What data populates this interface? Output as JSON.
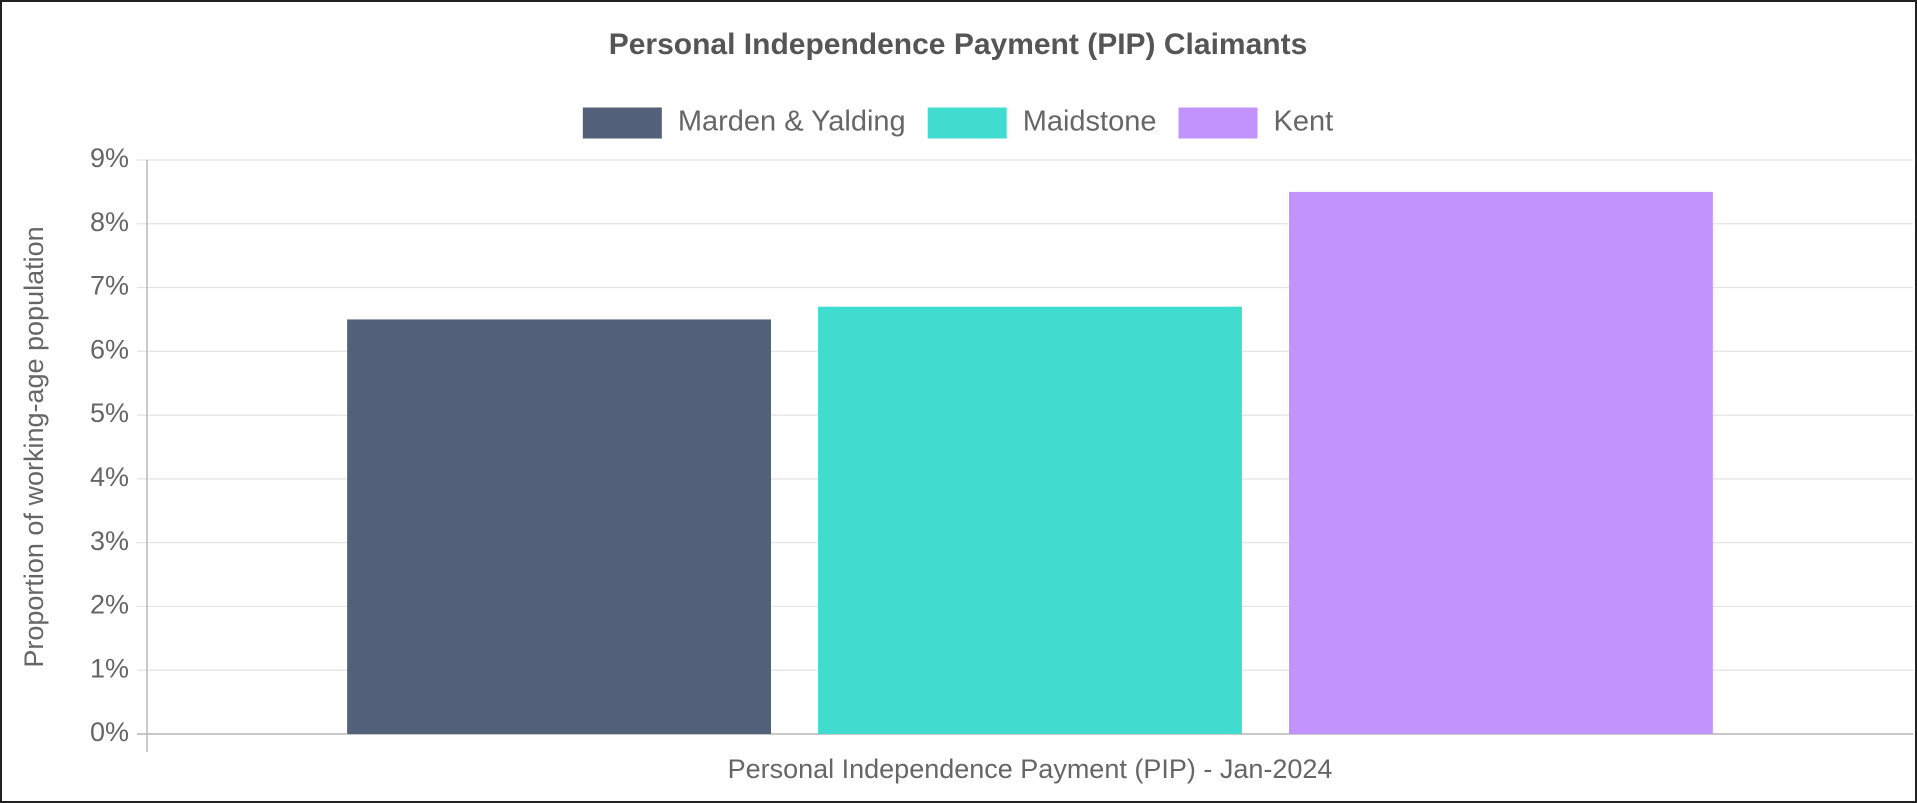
{
  "chart_data": {
    "type": "bar",
    "title": "Personal Independence Payment (PIP) Claimants",
    "categories": [
      "Personal Independence Payment (PIP) - Jan-2024"
    ],
    "series": [
      {
        "name": "Marden & Yalding",
        "color": "#526079",
        "values": [
          6.5
        ]
      },
      {
        "name": "Maidstone",
        "color": "#40dcd0",
        "values": [
          6.7
        ]
      },
      {
        "name": "Kent",
        "color": "#c293fc",
        "values": [
          8.5
        ]
      }
    ],
    "ylabel": "Proportion of working-age population",
    "ylim": [
      0,
      9
    ],
    "yticks": [
      {
        "value": 0,
        "label": "0%"
      },
      {
        "value": 1,
        "label": "1%"
      },
      {
        "value": 2,
        "label": "2%"
      },
      {
        "value": 3,
        "label": "3%"
      },
      {
        "value": 4,
        "label": "4%"
      },
      {
        "value": 5,
        "label": "5%"
      },
      {
        "value": 6,
        "label": "6%"
      },
      {
        "value": 7,
        "label": "7%"
      },
      {
        "value": 8,
        "label": "8%"
      },
      {
        "value": 9,
        "label": "9%"
      }
    ],
    "grid": true,
    "legend": "top"
  }
}
